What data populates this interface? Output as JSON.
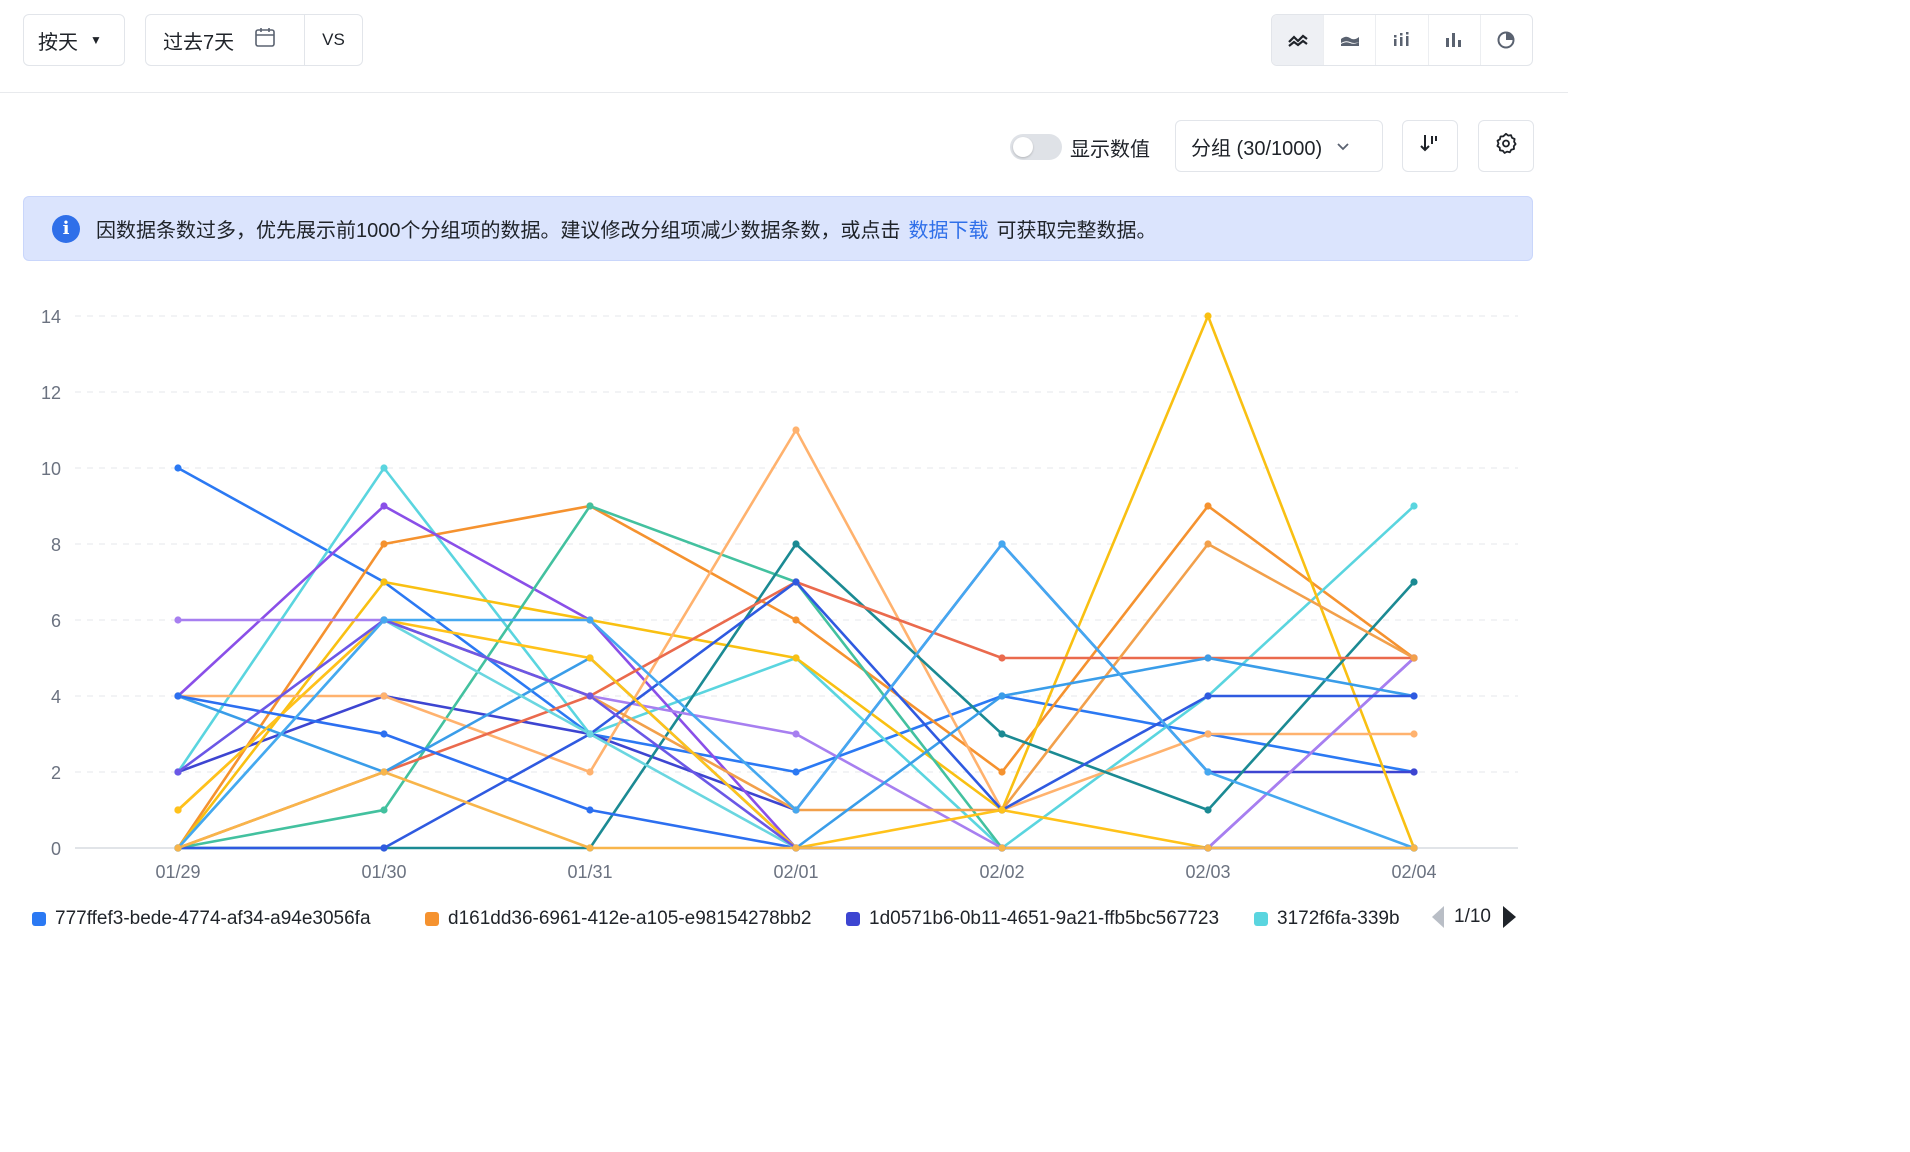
{
  "toolbar": {
    "granularity": "按天",
    "date_range": "过去7天",
    "compare": "VS",
    "chart_types": [
      "line-chart-icon",
      "area-chart-icon",
      "dot-bar-chart-icon",
      "bar-chart-icon",
      "pie-chart-icon"
    ],
    "active_chart_type": "line-chart-icon"
  },
  "controls": {
    "show_values_label": "显示数值",
    "show_values_on": false,
    "group_select": "分组 (30/1000)"
  },
  "notice": {
    "text_before": "因数据条数过多，优先展示前1000个分组项的数据。建议修改分组项减少数据条数，或点击",
    "link": "数据下载",
    "text_after": "可获取完整数据。"
  },
  "legend": {
    "items": [
      {
        "label": "777ffef3-bede-4774-af34-a94e3056fa",
        "color": "#2b79f3"
      },
      {
        "label": "d161dd36-6961-412e-a105-e98154278bb2",
        "color": "#f5922f"
      },
      {
        "label": "1d0571b6-0b11-4651-9a21-ffb5bc567723",
        "color": "#3d45d1"
      },
      {
        "label": "3172f6fa-339b",
        "color": "#5ad5df"
      }
    ],
    "page": "1/10"
  },
  "chart_data": {
    "type": "line",
    "categories": [
      "01/29",
      "01/30",
      "01/31",
      "02/01",
      "02/02",
      "02/03",
      "02/04"
    ],
    "ylim": [
      0,
      14
    ],
    "yticks": [
      0,
      2,
      4,
      6,
      8,
      10,
      12,
      14
    ],
    "grid": true,
    "series": [
      {
        "name": "777ffef3-bede-4774-af34-a94e3056fa",
        "color": "#2b79f3",
        "values": [
          10,
          7,
          3,
          2,
          4,
          3,
          2
        ]
      },
      {
        "name": "d161dd36-6961-412e-a105-e98154278bb2",
        "color": "#f5922f",
        "values": [
          0,
          8,
          9,
          6,
          2,
          9,
          5
        ]
      },
      {
        "name": "1d0571b6-0b11-4651-9a21-ffb5bc567723",
        "color": "#3d45d1",
        "values": [
          2,
          4,
          3,
          1,
          8,
          2,
          2
        ]
      },
      {
        "name": "3172f6fa-339b",
        "color": "#5ad5df",
        "values": [
          2,
          10,
          3,
          5,
          0,
          4,
          9
        ]
      },
      {
        "color": "#8a4fe8",
        "values": [
          4,
          9,
          6,
          0,
          0,
          0,
          5
        ]
      },
      {
        "color": "#f9c012",
        "values": [
          0,
          7,
          6,
          5,
          1,
          14,
          0
        ]
      },
      {
        "color": "#43c19f",
        "values": [
          0,
          1,
          9,
          7,
          0,
          0,
          0
        ]
      },
      {
        "color": "#ffb26e",
        "values": [
          4,
          4,
          2,
          11,
          1,
          3,
          3
        ]
      },
      {
        "color": "#1b8a93",
        "values": [
          0,
          0,
          0,
          8,
          3,
          1,
          7
        ]
      },
      {
        "color": "#ea6a4d",
        "values": [
          0,
          2,
          4,
          7,
          5,
          5,
          5
        ]
      },
      {
        "color": "#a77ff0",
        "values": [
          6,
          6,
          4,
          3,
          0,
          0,
          5
        ]
      },
      {
        "color": "#f2a04b",
        "values": [
          1,
          6,
          4,
          1,
          1,
          8,
          5
        ]
      },
      {
        "color": "#3a9de9",
        "values": [
          4,
          2,
          5,
          0,
          4,
          5,
          4
        ]
      },
      {
        "color": "#2f5ae0",
        "values": [
          0,
          0,
          3,
          7,
          1,
          4,
          4
        ]
      },
      {
        "color": "#ffc21a",
        "values": [
          1,
          6,
          5,
          0,
          1,
          0,
          0
        ]
      },
      {
        "color": "#2c6ff0",
        "values": [
          4,
          3,
          1,
          0,
          0,
          0,
          0
        ]
      },
      {
        "color": "#6ad6e0",
        "values": [
          0,
          6,
          3,
          0,
          0,
          0,
          0
        ]
      },
      {
        "color": "#6b57e6",
        "values": [
          2,
          6,
          4,
          0,
          0,
          0,
          0
        ]
      },
      {
        "color": "#45a8f0",
        "values": [
          0,
          6,
          6,
          1,
          8,
          2,
          0
        ]
      },
      {
        "color": "#f8b54a",
        "values": [
          0,
          2,
          0,
          0,
          0,
          0,
          0
        ]
      }
    ]
  }
}
